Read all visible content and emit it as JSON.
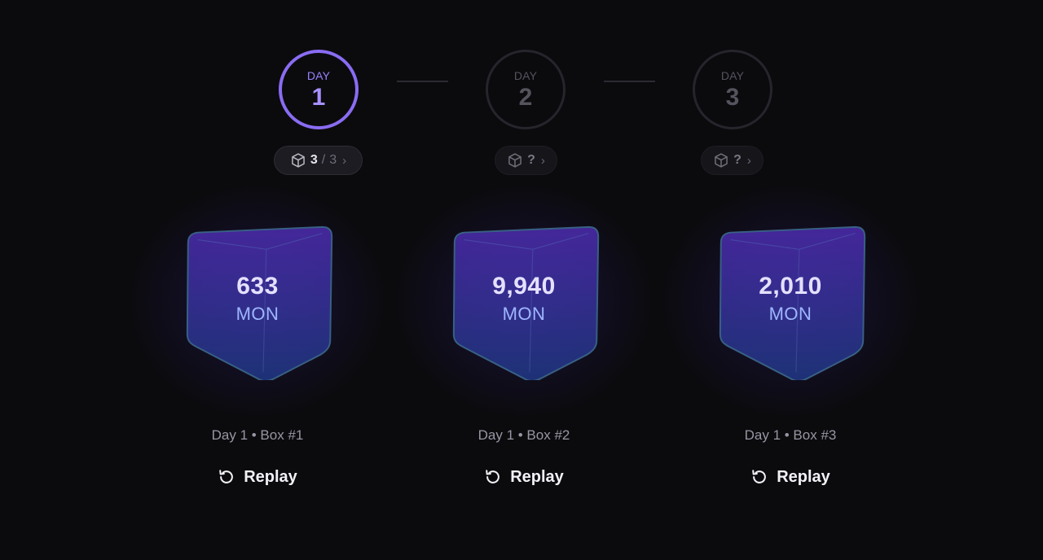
{
  "colors": {
    "background": "#0b0b0e",
    "accent": "#8a6cf2",
    "inactive_ring": "#26252c",
    "amount_text": "#e4e0ff",
    "unit_text": "#9fb6ff"
  },
  "days": [
    {
      "word": "DAY",
      "number": "1",
      "active": true,
      "pill": {
        "icon": "cube-icon",
        "count": "3",
        "separator": "/",
        "total": "3",
        "chevron": "›"
      }
    },
    {
      "word": "DAY",
      "number": "2",
      "active": false,
      "pill": {
        "icon": "cube-icon",
        "count": "?",
        "chevron": "›"
      }
    },
    {
      "word": "DAY",
      "number": "3",
      "active": false,
      "pill": {
        "icon": "cube-icon",
        "count": "?",
        "chevron": "›"
      }
    }
  ],
  "boxes": [
    {
      "amount": "633",
      "unit": "MON",
      "caption": "Day 1 • Box #1",
      "replay_label": "Replay",
      "replay_icon": "replay-icon"
    },
    {
      "amount": "9,940",
      "unit": "MON",
      "caption": "Day 1 • Box #2",
      "replay_label": "Replay",
      "replay_icon": "replay-icon"
    },
    {
      "amount": "2,010",
      "unit": "MON",
      "caption": "Day 1 • Box #3",
      "replay_label": "Replay",
      "replay_icon": "replay-icon"
    }
  ]
}
